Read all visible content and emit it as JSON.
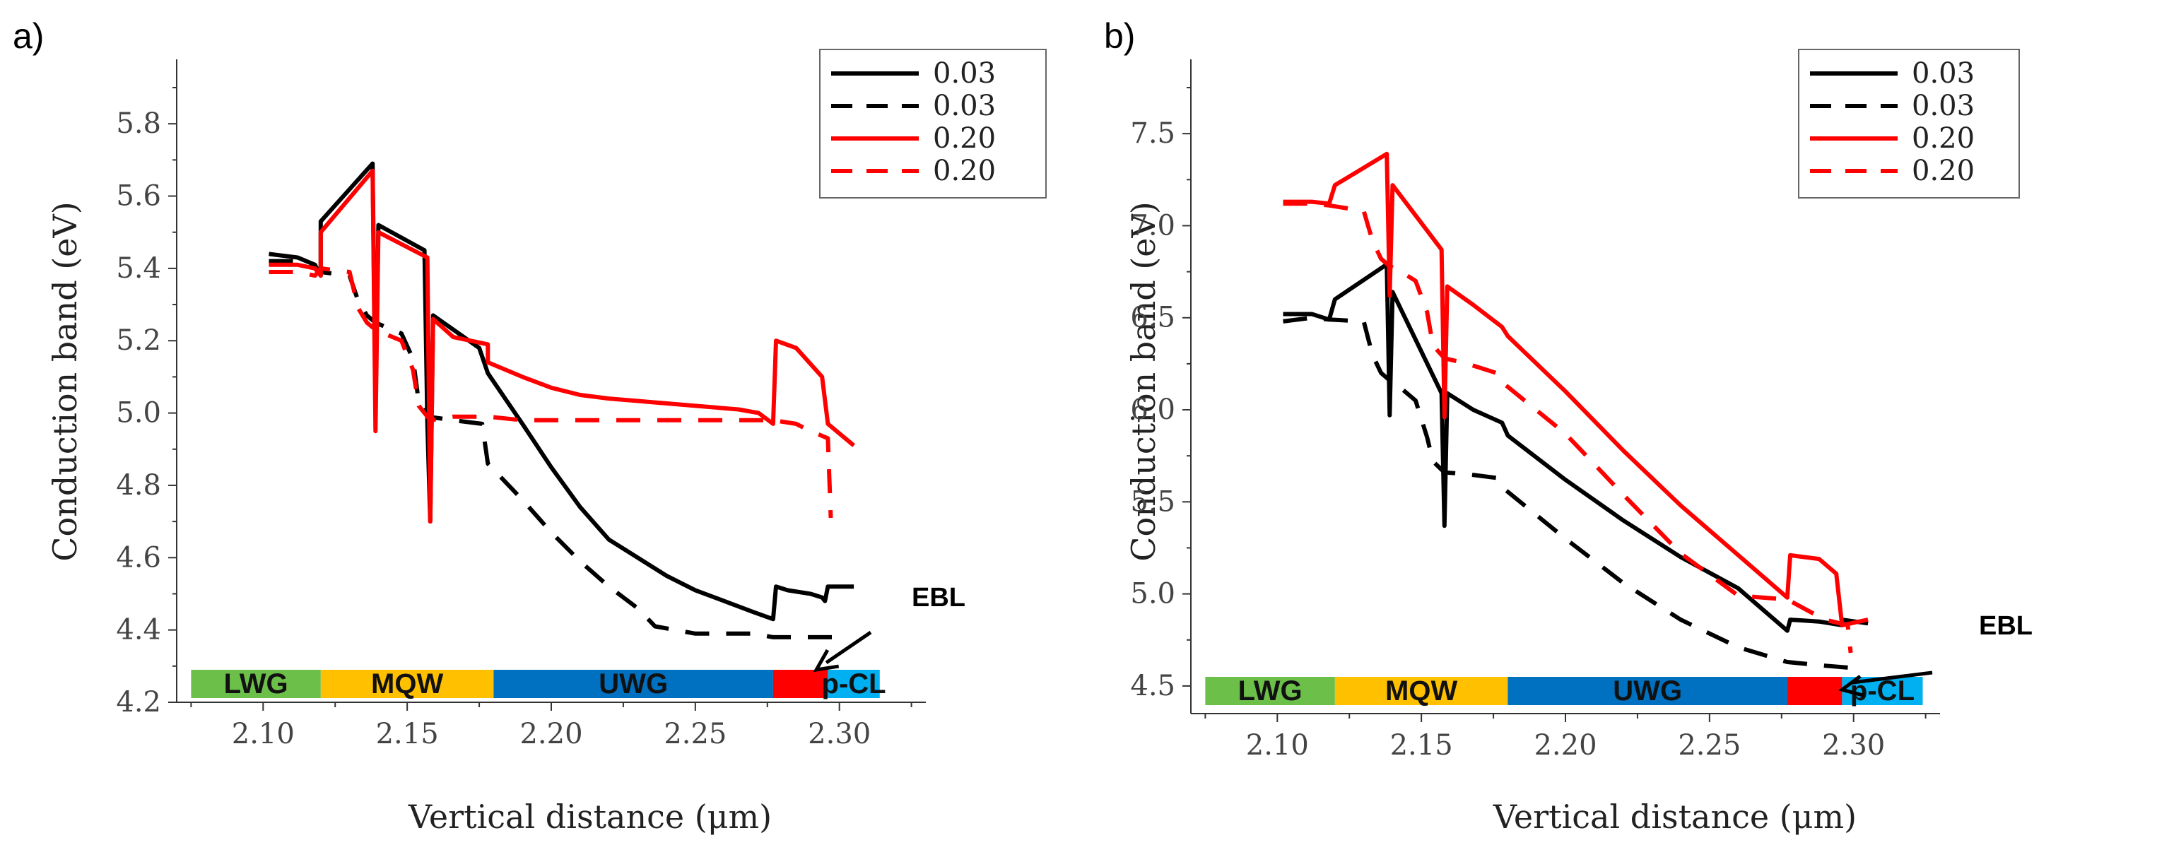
{
  "colors": {
    "black": "#000000",
    "red": "#ff0000",
    "lwg": "#6cc04a",
    "mqw": "#ffc000",
    "uwg": "#0070c0",
    "ebl": "#ff0000",
    "pcl": "#00b0f0"
  },
  "chart_data": [
    {
      "panel": "a)",
      "type": "line",
      "xlabel": "Vertical distance (μm)",
      "ylabel": "Conduction band (eV)",
      "xlim": [
        2.07,
        2.33
      ],
      "ylim": [
        4.2,
        5.9
      ],
      "xticks": [
        2.1,
        2.15,
        2.2,
        2.25,
        2.3
      ],
      "xtick_labels": [
        "2.10",
        "2.15",
        "2.20",
        "2.25",
        "2.30"
      ],
      "yticks": [
        4.2,
        4.4,
        4.6,
        4.8,
        5.0,
        5.2,
        5.4,
        5.6,
        5.8
      ],
      "ytick_labels": [
        "4.2",
        "4.4",
        "4.6",
        "4.8",
        "5.0",
        "5.2",
        "5.4",
        "5.6",
        "5.8"
      ],
      "legend_position": "top-right",
      "annotation": {
        "text": "EBL",
        "target": [
          2.292,
          4.29
        ]
      },
      "regions": [
        {
          "label": "LWG",
          "x0": 2.075,
          "x1": 2.12,
          "color": "lwg"
        },
        {
          "label": "MQW",
          "x0": 2.12,
          "x1": 2.18,
          "color": "mqw"
        },
        {
          "label": "UWG",
          "x0": 2.18,
          "x1": 2.277,
          "color": "uwg"
        },
        {
          "label": "",
          "x0": 2.277,
          "x1": 2.296,
          "color": "ebl"
        },
        {
          "label": "p-CL",
          "x0": 2.296,
          "x1": 2.314,
          "color": "pcl"
        }
      ],
      "series": [
        {
          "name": "0.03",
          "color": "black",
          "dash": "solid",
          "points": [
            [
              2.102,
              5.44
            ],
            [
              2.112,
              5.43
            ],
            [
              2.118,
              5.41
            ],
            [
              2.12,
              5.38
            ],
            [
              2.12,
              5.53
            ],
            [
              2.138,
              5.69
            ],
            [
              2.139,
              5.01
            ],
            [
              2.14,
              5.52
            ],
            [
              2.156,
              5.45
            ],
            [
              2.157,
              4.97
            ],
            [
              2.158,
              4.7
            ],
            [
              2.159,
              5.27
            ],
            [
              2.175,
              5.18
            ],
            [
              2.178,
              5.11
            ],
            [
              2.19,
              4.97
            ],
            [
              2.2,
              4.85
            ],
            [
              2.21,
              4.74
            ],
            [
              2.22,
              4.65
            ],
            [
              2.23,
              4.6
            ],
            [
              2.24,
              4.55
            ],
            [
              2.25,
              4.51
            ],
            [
              2.26,
              4.48
            ],
            [
              2.27,
              4.45
            ],
            [
              2.277,
              4.43
            ],
            [
              2.278,
              4.52
            ],
            [
              2.282,
              4.51
            ],
            [
              2.29,
              4.5
            ],
            [
              2.294,
              4.49
            ],
            [
              2.295,
              4.48
            ],
            [
              2.296,
              4.52
            ],
            [
              2.305,
              4.52
            ]
          ]
        },
        {
          "name": "0.03",
          "color": "black",
          "dash": "dashed",
          "points": [
            [
              2.102,
              5.42
            ],
            [
              2.112,
              5.42
            ],
            [
              2.118,
              5.4
            ],
            [
              2.12,
              5.39
            ],
            [
              2.13,
              5.38
            ],
            [
              2.133,
              5.31
            ],
            [
              2.136,
              5.27
            ],
            [
              2.139,
              5.25
            ],
            [
              2.142,
              5.24
            ],
            [
              2.148,
              5.22
            ],
            [
              2.152,
              5.15
            ],
            [
              2.154,
              5.03
            ],
            [
              2.157,
              4.99
            ],
            [
              2.166,
              4.98
            ],
            [
              2.176,
              4.97
            ],
            [
              2.178,
              4.86
            ],
            [
              2.19,
              4.76
            ],
            [
              2.2,
              4.67
            ],
            [
              2.21,
              4.59
            ],
            [
              2.22,
              4.52
            ],
            [
              2.23,
              4.46
            ],
            [
              2.236,
              4.41
            ],
            [
              2.25,
              4.39
            ],
            [
              2.26,
              4.39
            ],
            [
              2.27,
              4.39
            ],
            [
              2.277,
              4.38
            ],
            [
              2.29,
              4.38
            ],
            [
              2.298,
              4.38
            ]
          ]
        },
        {
          "name": "0.20",
          "color": "red",
          "dash": "solid",
          "points": [
            [
              2.102,
              5.41
            ],
            [
              2.112,
              5.41
            ],
            [
              2.118,
              5.4
            ],
            [
              2.12,
              5.38
            ],
            [
              2.12,
              5.5
            ],
            [
              2.138,
              5.67
            ],
            [
              2.139,
              4.95
            ],
            [
              2.14,
              5.5
            ],
            [
              2.157,
              5.43
            ],
            [
              2.158,
              4.7
            ],
            [
              2.159,
              5.26
            ],
            [
              2.166,
              5.21
            ],
            [
              2.178,
              5.19
            ],
            [
              2.178,
              5.14
            ],
            [
              2.19,
              5.1
            ],
            [
              2.2,
              5.07
            ],
            [
              2.21,
              5.05
            ],
            [
              2.22,
              5.04
            ],
            [
              2.235,
              5.03
            ],
            [
              2.25,
              5.02
            ],
            [
              2.265,
              5.01
            ],
            [
              2.272,
              5.0
            ],
            [
              2.277,
              4.97
            ],
            [
              2.278,
              5.2
            ],
            [
              2.285,
              5.18
            ],
            [
              2.294,
              5.1
            ],
            [
              2.296,
              4.97
            ],
            [
              2.305,
              4.91
            ]
          ]
        },
        {
          "name": "0.20",
          "color": "red",
          "dash": "dashed",
          "points": [
            [
              2.102,
              5.39
            ],
            [
              2.112,
              5.39
            ],
            [
              2.118,
              5.38
            ],
            [
              2.12,
              5.4
            ],
            [
              2.13,
              5.39
            ],
            [
              2.133,
              5.29
            ],
            [
              2.136,
              5.25
            ],
            [
              2.139,
              5.23
            ],
            [
              2.142,
              5.22
            ],
            [
              2.148,
              5.2
            ],
            [
              2.152,
              5.12
            ],
            [
              2.154,
              5.02
            ],
            [
              2.158,
              4.98
            ],
            [
              2.166,
              4.99
            ],
            [
              2.178,
              4.99
            ],
            [
              2.19,
              4.98
            ],
            [
              2.21,
              4.98
            ],
            [
              2.23,
              4.98
            ],
            [
              2.25,
              4.98
            ],
            [
              2.265,
              4.98
            ],
            [
              2.277,
              4.98
            ],
            [
              2.285,
              4.97
            ],
            [
              2.29,
              4.95
            ],
            [
              2.296,
              4.93
            ],
            [
              2.297,
              4.71
            ]
          ]
        }
      ]
    },
    {
      "panel": "b)",
      "type": "line",
      "xlabel": "Vertical distance (μm)",
      "ylabel": "Conduction band (eV)",
      "xlim": [
        2.07,
        2.33
      ],
      "ylim": [
        4.35,
        7.75
      ],
      "xticks": [
        2.1,
        2.15,
        2.2,
        2.25,
        2.3
      ],
      "xtick_labels": [
        "2.10",
        "2.15",
        "2.20",
        "2.25",
        "2.30"
      ],
      "yticks": [
        4.5,
        5.0,
        5.5,
        6.0,
        6.5,
        7.0,
        7.5
      ],
      "ytick_labels": [
        "4.5",
        "5.0",
        "5.5",
        "6.0",
        "6.5",
        "7.0",
        "7.5"
      ],
      "legend_position": "top-right",
      "annotation": {
        "text": "EBL",
        "target": [
          2.296,
          4.48
        ]
      },
      "regions": [
        {
          "label": "LWG",
          "x0": 2.075,
          "x1": 2.12,
          "color": "lwg"
        },
        {
          "label": "MQW",
          "x0": 2.12,
          "x1": 2.18,
          "color": "mqw"
        },
        {
          "label": "UWG",
          "x0": 2.18,
          "x1": 2.277,
          "color": "uwg"
        },
        {
          "label": "",
          "x0": 2.277,
          "x1": 2.296,
          "color": "ebl"
        },
        {
          "label": "p-CL",
          "x0": 2.296,
          "x1": 2.324,
          "color": "pcl"
        }
      ],
      "series": [
        {
          "name": "0.03",
          "color": "black",
          "dash": "solid",
          "points": [
            [
              2.102,
              6.52
            ],
            [
              2.112,
              6.52
            ],
            [
              2.118,
              6.49
            ],
            [
              2.12,
              6.6
            ],
            [
              2.138,
              6.79
            ],
            [
              2.139,
              5.97
            ],
            [
              2.14,
              6.64
            ],
            [
              2.157,
              6.09
            ],
            [
              2.158,
              5.37
            ],
            [
              2.159,
              6.09
            ],
            [
              2.168,
              6.0
            ],
            [
              2.178,
              5.93
            ],
            [
              2.18,
              5.86
            ],
            [
              2.2,
              5.62
            ],
            [
              2.22,
              5.4
            ],
            [
              2.24,
              5.2
            ],
            [
              2.26,
              5.03
            ],
            [
              2.277,
              4.8
            ],
            [
              2.278,
              4.86
            ],
            [
              2.288,
              4.85
            ],
            [
              2.296,
              4.83
            ],
            [
              2.296,
              4.86
            ],
            [
              2.305,
              4.84
            ]
          ]
        },
        {
          "name": "0.03",
          "color": "black",
          "dash": "dashed",
          "points": [
            [
              2.102,
              6.48
            ],
            [
              2.112,
              6.5
            ],
            [
              2.118,
              6.49
            ],
            [
              2.13,
              6.48
            ],
            [
              2.133,
              6.3
            ],
            [
              2.136,
              6.2
            ],
            [
              2.139,
              6.16
            ],
            [
              2.142,
              6.13
            ],
            [
              2.148,
              6.05
            ],
            [
              2.152,
              5.85
            ],
            [
              2.154,
              5.72
            ],
            [
              2.158,
              5.66
            ],
            [
              2.166,
              5.65
            ],
            [
              2.176,
              5.63
            ],
            [
              2.178,
              5.58
            ],
            [
              2.2,
              5.3
            ],
            [
              2.22,
              5.06
            ],
            [
              2.24,
              4.86
            ],
            [
              2.26,
              4.71
            ],
            [
              2.277,
              4.63
            ],
            [
              2.29,
              4.61
            ],
            [
              2.298,
              4.6
            ]
          ]
        },
        {
          "name": "0.20",
          "color": "red",
          "dash": "solid",
          "points": [
            [
              2.102,
              7.13
            ],
            [
              2.112,
              7.13
            ],
            [
              2.118,
              7.12
            ],
            [
              2.12,
              7.22
            ],
            [
              2.138,
              7.39
            ],
            [
              2.139,
              6.62
            ],
            [
              2.14,
              7.22
            ],
            [
              2.157,
              6.87
            ],
            [
              2.158,
              5.96
            ],
            [
              2.159,
              6.67
            ],
            [
              2.168,
              6.57
            ],
            [
              2.178,
              6.45
            ],
            [
              2.18,
              6.4
            ],
            [
              2.2,
              6.1
            ],
            [
              2.22,
              5.78
            ],
            [
              2.24,
              5.48
            ],
            [
              2.26,
              5.21
            ],
            [
              2.277,
              4.98
            ],
            [
              2.278,
              5.21
            ],
            [
              2.288,
              5.19
            ],
            [
              2.294,
              5.11
            ],
            [
              2.296,
              4.83
            ],
            [
              2.305,
              4.86
            ]
          ]
        },
        {
          "name": "0.20",
          "color": "red",
          "dash": "dashed",
          "points": [
            [
              2.102,
              7.12
            ],
            [
              2.112,
              7.12
            ],
            [
              2.118,
              7.11
            ],
            [
              2.13,
              7.08
            ],
            [
              2.133,
              6.92
            ],
            [
              2.136,
              6.82
            ],
            [
              2.139,
              6.78
            ],
            [
              2.142,
              6.76
            ],
            [
              2.148,
              6.7
            ],
            [
              2.152,
              6.53
            ],
            [
              2.154,
              6.35
            ],
            [
              2.158,
              6.28
            ],
            [
              2.166,
              6.25
            ],
            [
              2.176,
              6.2
            ],
            [
              2.178,
              6.15
            ],
            [
              2.2,
              5.87
            ],
            [
              2.22,
              5.54
            ],
            [
              2.24,
              5.22
            ],
            [
              2.26,
              4.99
            ],
            [
              2.277,
              4.97
            ],
            [
              2.29,
              4.86
            ],
            [
              2.298,
              4.83
            ],
            [
              2.299,
              4.68
            ]
          ]
        }
      ]
    }
  ]
}
